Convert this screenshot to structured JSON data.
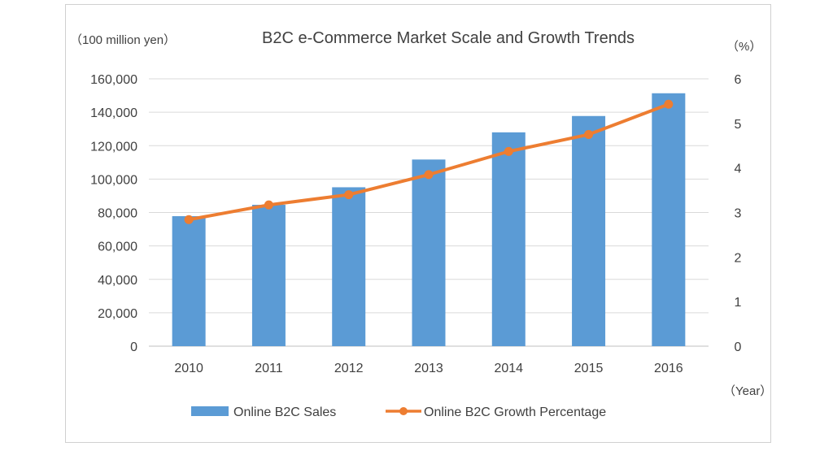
{
  "chart_data": {
    "type": "bar",
    "title": "B2C e-Commerce Market Scale and Growth Trends",
    "y_left_label": "（100 million yen）",
    "y_right_label": "（%）",
    "x_label": "（Year）",
    "categories": [
      "2010",
      "2011",
      "2012",
      "2013",
      "2014",
      "2015",
      "2016"
    ],
    "y_left_ticks": [
      "0",
      "20,000",
      "40,000",
      "60,000",
      "80,000",
      "100,000",
      "120,000",
      "140,000",
      "160,000"
    ],
    "y_right_ticks": [
      "0",
      "1",
      "2",
      "3",
      "4",
      "5",
      "6"
    ],
    "ylim_left": [
      0,
      160000
    ],
    "ylim_right": [
      0,
      6
    ],
    "grid": true,
    "legend_position": "bottom",
    "series": [
      {
        "name": "Online B2C Sales",
        "type": "bar",
        "axis": "left",
        "color": "#5b9bd5",
        "values": [
          77800,
          84600,
          95100,
          111700,
          127970,
          137746,
          151358
        ]
      },
      {
        "name": "Online B2C Growth Percentage",
        "type": "line",
        "axis": "right",
        "color": "#ed7d31",
        "values": [
          2.84,
          3.17,
          3.4,
          3.85,
          4.37,
          4.75,
          5.43
        ]
      }
    ]
  }
}
